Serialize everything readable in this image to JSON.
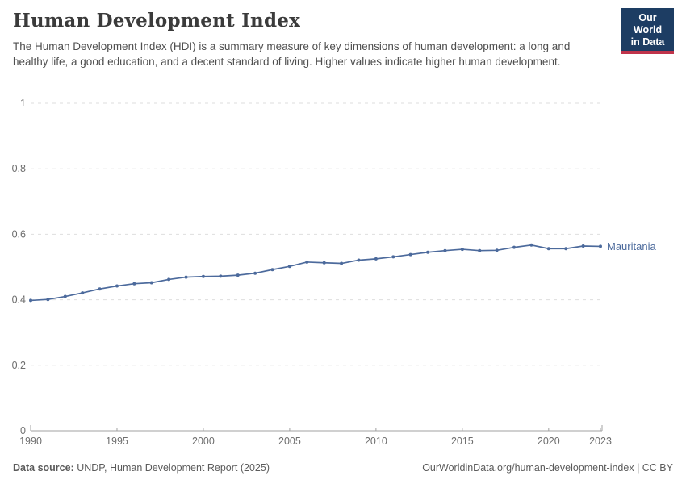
{
  "header": {
    "title": "Human Development Index",
    "subtitle": "The Human Development Index (HDI) is a summary measure of key dimensions of human development: a long and healthy life, a good education, and a decent standard of living. Higher values indicate higher human development.",
    "logo": {
      "line1": "Our World",
      "line2": "in Data",
      "bg_color": "#1d3d63",
      "accent_color": "#c0344b"
    }
  },
  "chart_data": {
    "type": "line",
    "title": "Human Development Index",
    "xlabel": "",
    "ylabel": "",
    "xlim": [
      1990,
      2023
    ],
    "ylim": [
      0,
      1
    ],
    "xticks": [
      1990,
      1995,
      2000,
      2005,
      2010,
      2015,
      2020,
      2023
    ],
    "yticks": [
      0,
      0.2,
      0.4,
      0.6,
      0.8,
      1
    ],
    "grid": "horizontal-dashed",
    "legend_position": "end-of-line",
    "x": [
      1990,
      1991,
      1992,
      1993,
      1994,
      1995,
      1996,
      1997,
      1998,
      1999,
      2000,
      2001,
      2002,
      2003,
      2004,
      2005,
      2006,
      2007,
      2008,
      2009,
      2010,
      2011,
      2012,
      2013,
      2014,
      2015,
      2016,
      2017,
      2018,
      2019,
      2020,
      2021,
      2022,
      2023
    ],
    "series": [
      {
        "name": "Mauritania",
        "color": "#4c6a9c",
        "values": [
          0.398,
          0.401,
          0.41,
          0.421,
          0.433,
          0.442,
          0.449,
          0.452,
          0.462,
          0.469,
          0.471,
          0.472,
          0.475,
          0.481,
          0.492,
          0.502,
          0.515,
          0.513,
          0.511,
          0.521,
          0.525,
          0.531,
          0.538,
          0.545,
          0.55,
          0.554,
          0.55,
          0.551,
          0.56,
          0.567,
          0.556,
          0.556,
          0.564,
          0.563
        ]
      }
    ]
  },
  "footer": {
    "source_label": "Data source:",
    "source_text": "UNDP, Human Development Report (2025)",
    "link_text": "OurWorldinData.org/human-development-index | CC BY"
  }
}
